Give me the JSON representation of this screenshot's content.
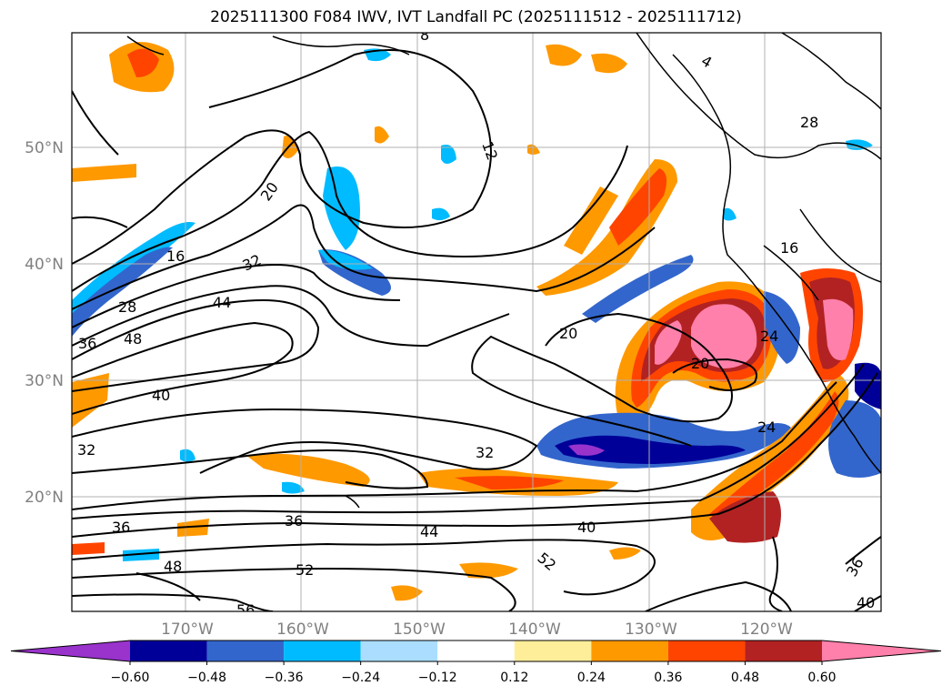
{
  "title": "2025111300 F084 IWV, IVT Landfall PC (2025111512 - 2025111712)",
  "map": {
    "lat_labels": [
      "50°N",
      "40°N",
      "30°N",
      "20°N"
    ],
    "lon_labels": [
      "170°W",
      "160°W",
      "150°W",
      "140°W",
      "130°W",
      "120°W"
    ],
    "contour_labels": [
      "12",
      "16",
      "20",
      "28",
      "32",
      "36",
      "44",
      "48",
      "40",
      "32",
      "36",
      "36",
      "44",
      "40",
      "52",
      "48",
      "52",
      "56",
      "20",
      "20",
      "24",
      "24",
      "16",
      "8",
      "28",
      "36",
      "40",
      "4"
    ]
  },
  "colorbar": {
    "ticks": [
      "−0.60",
      "−0.48",
      "−0.36",
      "−0.24",
      "−0.12",
      "0.12",
      "0.24",
      "0.36",
      "0.48",
      "0.60"
    ],
    "colors": [
      "#9933cc",
      "#000099",
      "#3366cc",
      "#00bbff",
      "#aaddff",
      "#ffffff",
      "#ffee99",
      "#ff9900",
      "#ff4400",
      "#b22222",
      "#ff80aa"
    ]
  }
}
